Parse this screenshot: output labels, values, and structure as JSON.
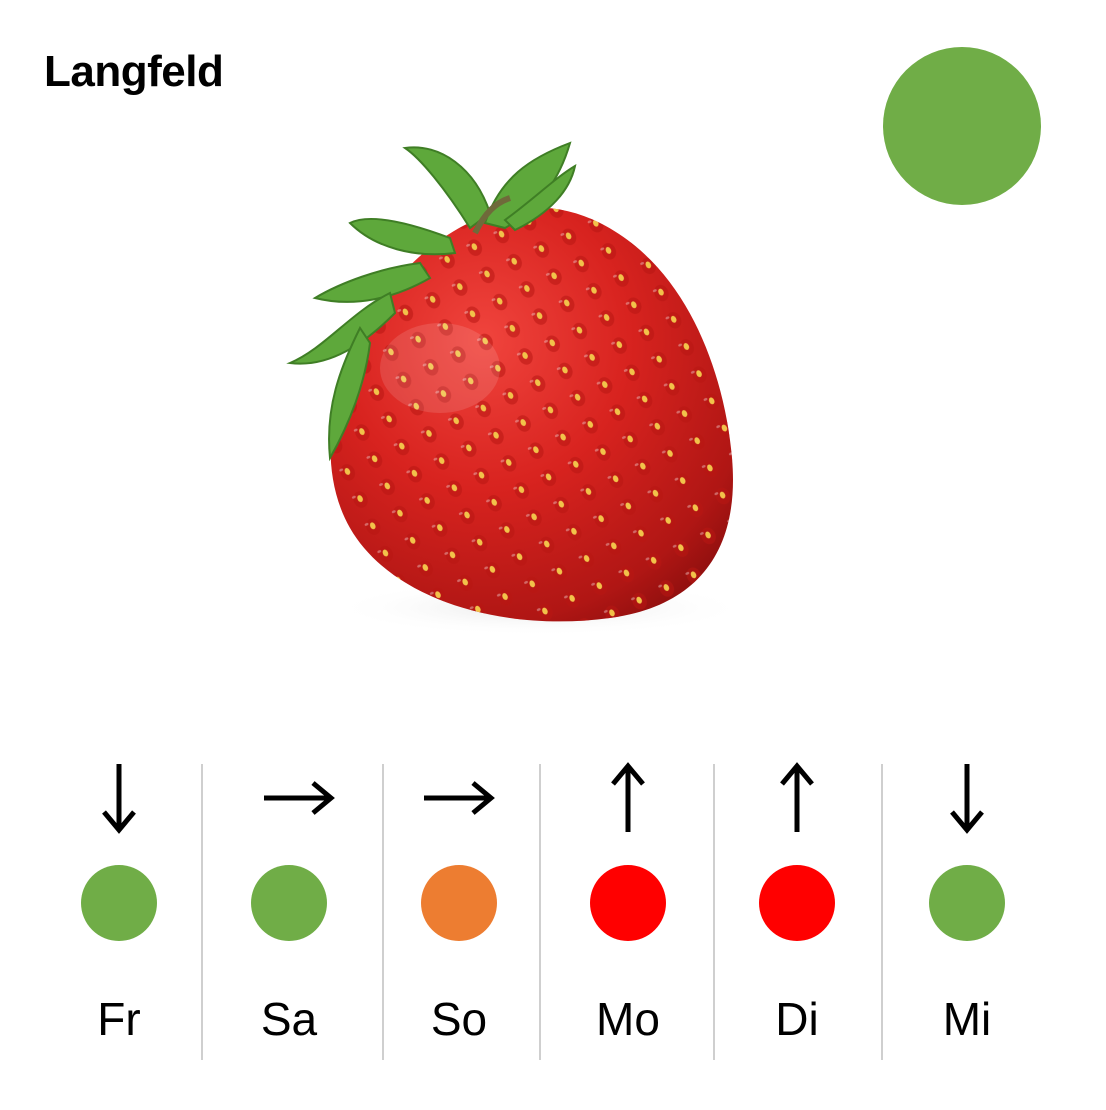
{
  "location": "Langfeld",
  "overall_status": {
    "color": "#70ad47"
  },
  "image": {
    "subject": "strawberry"
  },
  "colors": {
    "green": "#70ad47",
    "orange": "#ed7d31",
    "red": "#ff0000"
  },
  "days": [
    {
      "label": "Fr",
      "trend": "down",
      "trend_icon": "arrow-down-icon",
      "color": "#70ad47"
    },
    {
      "label": "Sa",
      "trend": "right",
      "trend_icon": "arrow-right-icon",
      "color": "#70ad47"
    },
    {
      "label": "So",
      "trend": "right",
      "trend_icon": "arrow-right-icon",
      "color": "#ed7d31"
    },
    {
      "label": "Mo",
      "trend": "up",
      "trend_icon": "arrow-up-icon",
      "color": "#ff0000"
    },
    {
      "label": "Di",
      "trend": "up",
      "trend_icon": "arrow-up-icon",
      "color": "#ff0000"
    },
    {
      "label": "Mi",
      "trend": "down",
      "trend_icon": "arrow-down-icon",
      "color": "#70ad47"
    }
  ]
}
